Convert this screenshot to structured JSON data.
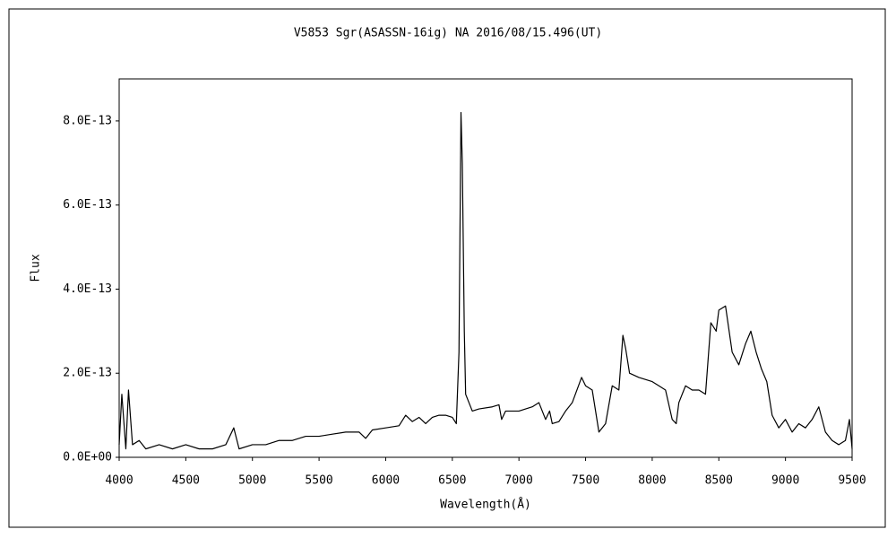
{
  "chart_data": {
    "type": "line",
    "title": "V5853 Sgr(ASASSN-16ig)   NA   2016/08/15.496(UT)",
    "x_label": "Wavelength(Å)",
    "y_label": "Flux",
    "x": [
      4000,
      4020,
      4050,
      4070,
      4100,
      4150,
      4200,
      4300,
      4400,
      4500,
      4600,
      4700,
      4800,
      4860,
      4900,
      5000,
      5100,
      5200,
      5300,
      5400,
      5500,
      5600,
      5700,
      5800,
      5850,
      5900,
      6000,
      6100,
      6150,
      6200,
      6250,
      6300,
      6350,
      6400,
      6450,
      6500,
      6530,
      6550,
      6565,
      6575,
      6590,
      6600,
      6650,
      6700,
      6800,
      6850,
      6870,
      6900,
      7000,
      7100,
      7150,
      7200,
      7230,
      7250,
      7300,
      7350,
      7400,
      7470,
      7500,
      7550,
      7600,
      7650,
      7700,
      7750,
      7780,
      7800,
      7830,
      7900,
      8000,
      8050,
      8100,
      8150,
      8180,
      8200,
      8250,
      8300,
      8350,
      8400,
      8440,
      8480,
      8500,
      8550,
      8600,
      8650,
      8700,
      8740,
      8780,
      8820,
      8860,
      8900,
      8950,
      9000,
      9050,
      9100,
      9150,
      9200,
      9250,
      9300,
      9350,
      9400,
      9450,
      9480,
      9500
    ],
    "series": [
      {
        "name": "Flux",
        "color": "#000000",
        "values": [
          3e-14,
          1.5e-13,
          2e-14,
          1.6e-13,
          3e-14,
          4e-14,
          2e-14,
          3e-14,
          2e-14,
          3e-14,
          2e-14,
          2e-14,
          3e-14,
          7e-14,
          2e-14,
          3e-14,
          3e-14,
          4e-14,
          4e-14,
          5e-14,
          5e-14,
          5.5e-14,
          6e-14,
          6e-14,
          4.5e-14,
          6.5e-14,
          7e-14,
          7.5e-14,
          1e-13,
          8.5e-14,
          9.5e-14,
          8e-14,
          9.5e-14,
          1e-13,
          1e-13,
          9.5e-14,
          8e-14,
          2.5e-13,
          8.2e-13,
          7e-13,
          3e-13,
          1.5e-13,
          1.1e-13,
          1.15e-13,
          1.2e-13,
          1.25e-13,
          9e-14,
          1.1e-13,
          1.1e-13,
          1.2e-13,
          1.3e-13,
          9e-14,
          1.1e-13,
          8e-14,
          8.5e-14,
          1.1e-13,
          1.3e-13,
          1.9e-13,
          1.7e-13,
          1.6e-13,
          6e-14,
          8e-14,
          1.7e-13,
          1.6e-13,
          2.9e-13,
          2.6e-13,
          2e-13,
          1.9e-13,
          1.8e-13,
          1.7e-13,
          1.6e-13,
          9e-14,
          8e-14,
          1.3e-13,
          1.7e-13,
          1.6e-13,
          1.6e-13,
          1.5e-13,
          3.2e-13,
          3e-13,
          3.5e-13,
          3.6e-13,
          2.5e-13,
          2.2e-13,
          2.7e-13,
          3e-13,
          2.5e-13,
          2.1e-13,
          1.8e-13,
          1e-13,
          7e-14,
          9e-14,
          6e-14,
          8e-14,
          7e-14,
          9e-14,
          1.2e-13,
          6e-14,
          4e-14,
          3e-14,
          4e-14,
          9e-14,
          2e-14
        ]
      }
    ],
    "xlim": [
      4000,
      9500
    ],
    "xticks": [
      4000,
      4500,
      5000,
      5500,
      6000,
      6500,
      7000,
      7500,
      8000,
      8500,
      9000,
      9500
    ],
    "ylim": [
      0,
      9e-13
    ],
    "yticks": [
      {
        "value": 0,
        "label": "0.0E+00"
      },
      {
        "value": 2e-13,
        "label": "2.0E-13"
      },
      {
        "value": 4e-13,
        "label": "4.0E-13"
      },
      {
        "value": 6e-13,
        "label": "6.0E-13"
      },
      {
        "value": 8e-13,
        "label": "8.0E-13"
      }
    ],
    "grid": false
  }
}
